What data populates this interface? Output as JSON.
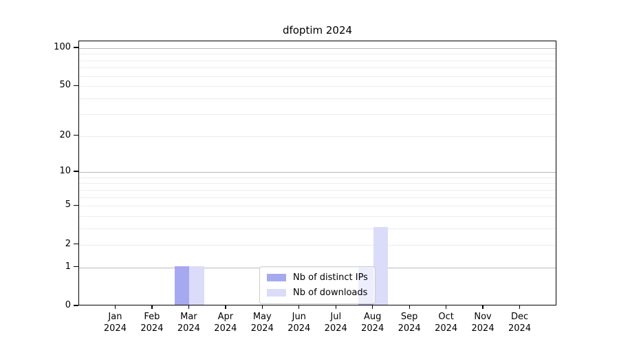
{
  "title": "dfoptim 2024",
  "chart_data": {
    "type": "bar",
    "title": "dfoptim 2024",
    "categories": [
      "Jan",
      "Feb",
      "Mar",
      "Apr",
      "May",
      "Jun",
      "Jul",
      "Aug",
      "Sep",
      "Oct",
      "Nov",
      "Dec"
    ],
    "year_label": "2024",
    "series": [
      {
        "name": "Nb of distinct IPs",
        "color": "#a6a9f0",
        "values": [
          0,
          0,
          1,
          0,
          0,
          0,
          0,
          1,
          0,
          0,
          0,
          0
        ]
      },
      {
        "name": "Nb of downloads",
        "color": "#dbdcf9",
        "values": [
          0,
          0,
          1,
          0,
          0,
          0,
          0,
          3,
          0,
          0,
          0,
          0
        ]
      }
    ],
    "y_scale": "log1p",
    "y_axis_ticks": [
      0,
      1,
      2,
      5,
      10,
      20,
      50,
      100
    ],
    "y_major_gridlines": [
      1,
      10,
      100
    ],
    "y_minor_gridlines": [
      2,
      3,
      4,
      5,
      6,
      7,
      8,
      9,
      20,
      30,
      40,
      50,
      60,
      70,
      80,
      90
    ],
    "y_max": 113,
    "xlabel": "",
    "ylabel": "",
    "grid": "on",
    "legend_position": "lower center",
    "colors": {
      "major_grid": "#b8b8b8",
      "minor_grid": "#ececec",
      "spine": "#000000",
      "background": "#ffffff"
    }
  }
}
